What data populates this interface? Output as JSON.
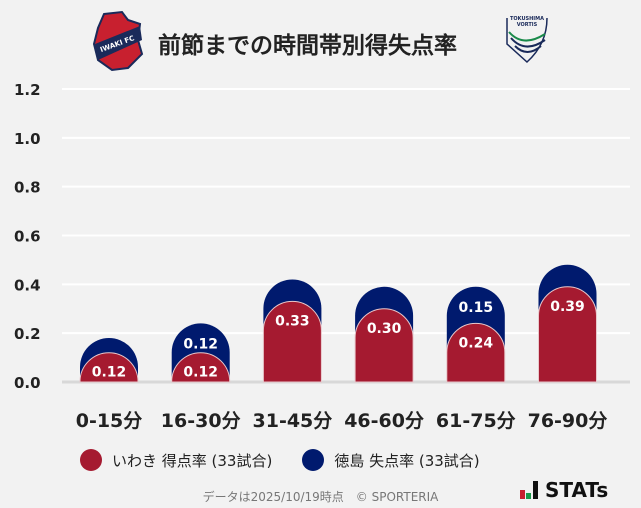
{
  "header": {
    "title": "前節までの時間帯別得失点率",
    "home_logo_text": "IWAKI FC",
    "away_logo_text": "TOKUSHIMA VORTIS"
  },
  "colors": {
    "home": "#a51a30",
    "away": "#001a6e",
    "background": "#f2f2f2",
    "grid": "#ffffff"
  },
  "chart_data": {
    "type": "bar",
    "stacked": true,
    "categories": [
      "0-15分",
      "16-30分",
      "31-45分",
      "46-60分",
      "61-75分",
      "76-90分"
    ],
    "series": [
      {
        "name": "いわき 得点率 (33試合)",
        "values": [
          0.12,
          0.12,
          0.33,
          0.3,
          0.24,
          0.39
        ],
        "labels": [
          "0.12",
          "0.12",
          "0.33",
          "0.30",
          "0.24",
          "0.39"
        ]
      },
      {
        "name": "徳島 失点率 (33試合)",
        "values": [
          0.06,
          0.12,
          0.09,
          0.09,
          0.15,
          0.09
        ],
        "labels": [
          "",
          "0.12",
          "",
          "",
          "0.15",
          ""
        ]
      }
    ],
    "ylim": [
      0,
      1.2
    ],
    "yticks": [
      "0.0",
      "0.2",
      "0.4",
      "0.6",
      "0.8",
      "1.0",
      "1.2"
    ],
    "grid": true,
    "legend": "bottom"
  },
  "legend": {
    "home": "いわき 得点率 (33試合)",
    "away": "徳島 失点率 (33試合)"
  },
  "footer": {
    "note": "データは2025/10/19時点　© SPORTERIA",
    "brand": "STATs"
  }
}
